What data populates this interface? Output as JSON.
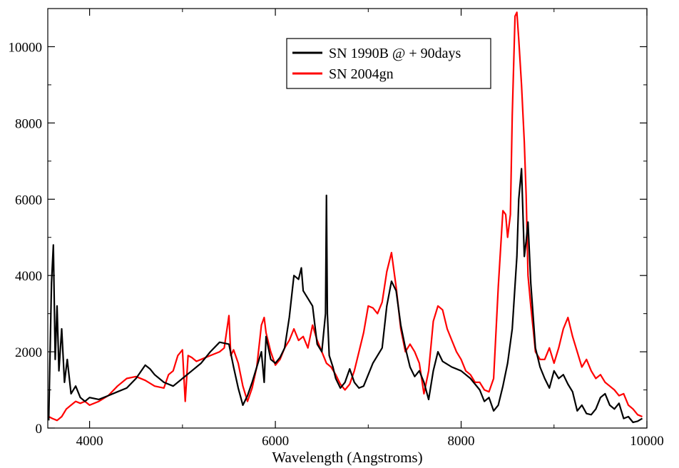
{
  "chart_data": {
    "type": "line",
    "xlabel": "Wavelength (Angstroms)",
    "ylabel": "",
    "xlim": [
      3550,
      10000
    ],
    "ylim": [
      0,
      11000
    ],
    "xticks": [
      4000,
      6000,
      8000,
      10000
    ],
    "xtick_labels": [
      "4000",
      "6000",
      "8000",
      "10000"
    ],
    "yticks": [
      0,
      2000,
      4000,
      6000,
      8000,
      10000
    ],
    "ytick_labels": [
      "0",
      "2000",
      "4000",
      "6000",
      "8000",
      "10000"
    ],
    "grid": false,
    "legend_position": "top-center",
    "series": [
      {
        "name": "SN 1990B @ + 90days",
        "color": "#000000",
        "x": [
          3560,
          3590,
          3610,
          3630,
          3650,
          3670,
          3700,
          3730,
          3760,
          3800,
          3850,
          3900,
          3950,
          4000,
          4100,
          4200,
          4300,
          4400,
          4500,
          4600,
          4650,
          4700,
          4800,
          4900,
          5000,
          5100,
          5200,
          5300,
          5400,
          5500,
          5550,
          5600,
          5650,
          5700,
          5750,
          5800,
          5850,
          5880,
          5900,
          5950,
          6000,
          6050,
          6100,
          6150,
          6200,
          6250,
          6280,
          6300,
          6350,
          6400,
          6450,
          6500,
          6540,
          6550,
          6560,
          6580,
          6620,
          6650,
          6700,
          6750,
          6800,
          6850,
          6900,
          6950,
          7000,
          7050,
          7100,
          7150,
          7200,
          7250,
          7300,
          7350,
          7400,
          7450,
          7500,
          7550,
          7600,
          7650,
          7700,
          7750,
          7800,
          7900,
          8000,
          8100,
          8200,
          8250,
          8300,
          8350,
          8400,
          8450,
          8500,
          8550,
          8600,
          8620,
          8650,
          8680,
          8700,
          8720,
          8750,
          8800,
          8850,
          8900,
          8950,
          9000,
          9050,
          9100,
          9150,
          9200,
          9250,
          9300,
          9350,
          9400,
          9450,
          9500,
          9550,
          9600,
          9650,
          9700,
          9750,
          9800,
          9850,
          9900,
          9950
        ],
        "y": [
          200,
          3800,
          4800,
          1800,
          3200,
          1500,
          2600,
          1200,
          1800,
          900,
          1100,
          800,
          700,
          800,
          750,
          850,
          950,
          1050,
          1300,
          1650,
          1550,
          1400,
          1200,
          1100,
          1300,
          1500,
          1700,
          2000,
          2250,
          2200,
          1600,
          1050,
          600,
          850,
          1200,
          1600,
          2000,
          1200,
          2400,
          1800,
          1700,
          1850,
          2100,
          2900,
          4000,
          3900,
          4200,
          3600,
          3400,
          3200,
          2200,
          2000,
          3000,
          6100,
          3000,
          1900,
          1600,
          1300,
          1050,
          1200,
          1550,
          1200,
          1050,
          1100,
          1400,
          1700,
          1900,
          2100,
          3200,
          3850,
          3600,
          2700,
          2100,
          1600,
          1350,
          1500,
          1200,
          750,
          1500,
          2000,
          1750,
          1600,
          1500,
          1300,
          1000,
          700,
          800,
          450,
          600,
          1100,
          1700,
          2600,
          4500,
          6000,
          6800,
          4500,
          4900,
          5400,
          3800,
          2100,
          1600,
          1300,
          1050,
          1500,
          1300,
          1400,
          1150,
          950,
          450,
          600,
          380,
          350,
          500,
          800,
          900,
          600,
          500,
          650,
          250,
          300,
          150,
          180,
          250
        ]
      },
      {
        "name": "SN 2004gn",
        "color": "#ff0000",
        "x": [
          3560,
          3600,
          3650,
          3700,
          3750,
          3800,
          3850,
          3900,
          3950,
          4000,
          4100,
          4200,
          4300,
          4400,
          4500,
          4600,
          4700,
          4800,
          4850,
          4900,
          4950,
          5000,
          5030,
          5060,
          5100,
          5150,
          5200,
          5300,
          5400,
          5450,
          5500,
          5520,
          5550,
          5600,
          5650,
          5700,
          5750,
          5800,
          5850,
          5880,
          5900,
          5950,
          6000,
          6050,
          6100,
          6150,
          6200,
          6250,
          6300,
          6350,
          6400,
          6450,
          6500,
          6550,
          6600,
          6650,
          6700,
          6750,
          6800,
          6850,
          6900,
          6950,
          7000,
          7050,
          7100,
          7150,
          7200,
          7250,
          7300,
          7350,
          7400,
          7450,
          7500,
          7550,
          7600,
          7650,
          7700,
          7750,
          7800,
          7850,
          7900,
          7950,
          8000,
          8050,
          8100,
          8150,
          8200,
          8250,
          8300,
          8350,
          8400,
          8450,
          8480,
          8500,
          8530,
          8550,
          8580,
          8600,
          8620,
          8650,
          8680,
          8700,
          8720,
          8750,
          8780,
          8800,
          8850,
          8900,
          8950,
          9000,
          9050,
          9100,
          9150,
          9200,
          9250,
          9300,
          9350,
          9400,
          9450,
          9500,
          9550,
          9600,
          9650,
          9700,
          9750,
          9800,
          9850,
          9900,
          9950
        ],
        "y": [
          300,
          250,
          200,
          300,
          500,
          600,
          700,
          650,
          700,
          600,
          700,
          850,
          1100,
          1300,
          1350,
          1250,
          1100,
          1050,
          1400,
          1500,
          1900,
          2050,
          700,
          1900,
          1850,
          1750,
          1800,
          1900,
          2000,
          2100,
          2950,
          1900,
          2050,
          1700,
          1100,
          700,
          1050,
          1600,
          2700,
          2900,
          2500,
          2000,
          1650,
          1800,
          2100,
          2300,
          2600,
          2300,
          2400,
          2100,
          2700,
          2300,
          2000,
          1700,
          1600,
          1400,
          1150,
          1000,
          1150,
          1500,
          2000,
          2500,
          3200,
          3150,
          3000,
          3300,
          4100,
          4600,
          3700,
          2600,
          2000,
          2200,
          2000,
          1700,
          900,
          1500,
          2800,
          3200,
          3100,
          2600,
          2300,
          2000,
          1800,
          1500,
          1400,
          1200,
          1200,
          1000,
          950,
          1300,
          3700,
          5700,
          5600,
          5000,
          5600,
          8200,
          10800,
          10900,
          10200,
          9000,
          7500,
          6100,
          4000,
          3200,
          2500,
          2000,
          1800,
          1800,
          2100,
          1700,
          2100,
          2600,
          2900,
          2400,
          2000,
          1600,
          1800,
          1500,
          1300,
          1400,
          1200,
          1100,
          1000,
          850,
          900,
          600,
          500,
          350,
          300
        ]
      }
    ]
  }
}
